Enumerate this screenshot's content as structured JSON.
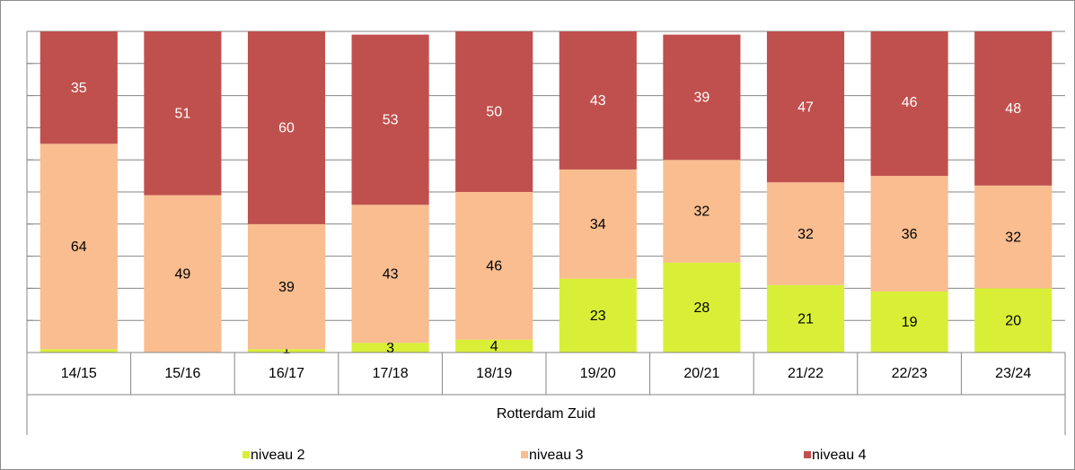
{
  "chart_data": {
    "type": "stacked_bar",
    "group_label": "Rotterdam Zuid",
    "categories": [
      "14/15",
      "15/16",
      "16/17",
      "17/18",
      "18/19",
      "19/20",
      "20/21",
      "21/22",
      "22/23",
      "23/24"
    ],
    "series": [
      {
        "name": "niveau 2",
        "color": "#d9ef37",
        "label_color": "#000000",
        "values": [
          1,
          0,
          1,
          3,
          4,
          23,
          28,
          21,
          19,
          20
        ],
        "value_labels": [
          null,
          null,
          "1",
          "3",
          "4",
          "23",
          "28",
          "21",
          "19",
          "20"
        ]
      },
      {
        "name": "niveau 3",
        "color": "#f9bd8f",
        "label_color": "#000000",
        "values": [
          64,
          49,
          39,
          43,
          46,
          34,
          32,
          32,
          36,
          32
        ]
      },
      {
        "name": "niveau 4",
        "color": "#c0504d",
        "label_color": "#ffffff",
        "values": [
          35,
          51,
          60,
          53,
          50,
          43,
          39,
          47,
          46,
          48
        ]
      }
    ],
    "ylim": [
      0,
      100
    ],
    "yticks": [
      0,
      10,
      20,
      30,
      40,
      50,
      60,
      70,
      80,
      90,
      100
    ],
    "grid": true,
    "legend": "bottom"
  }
}
